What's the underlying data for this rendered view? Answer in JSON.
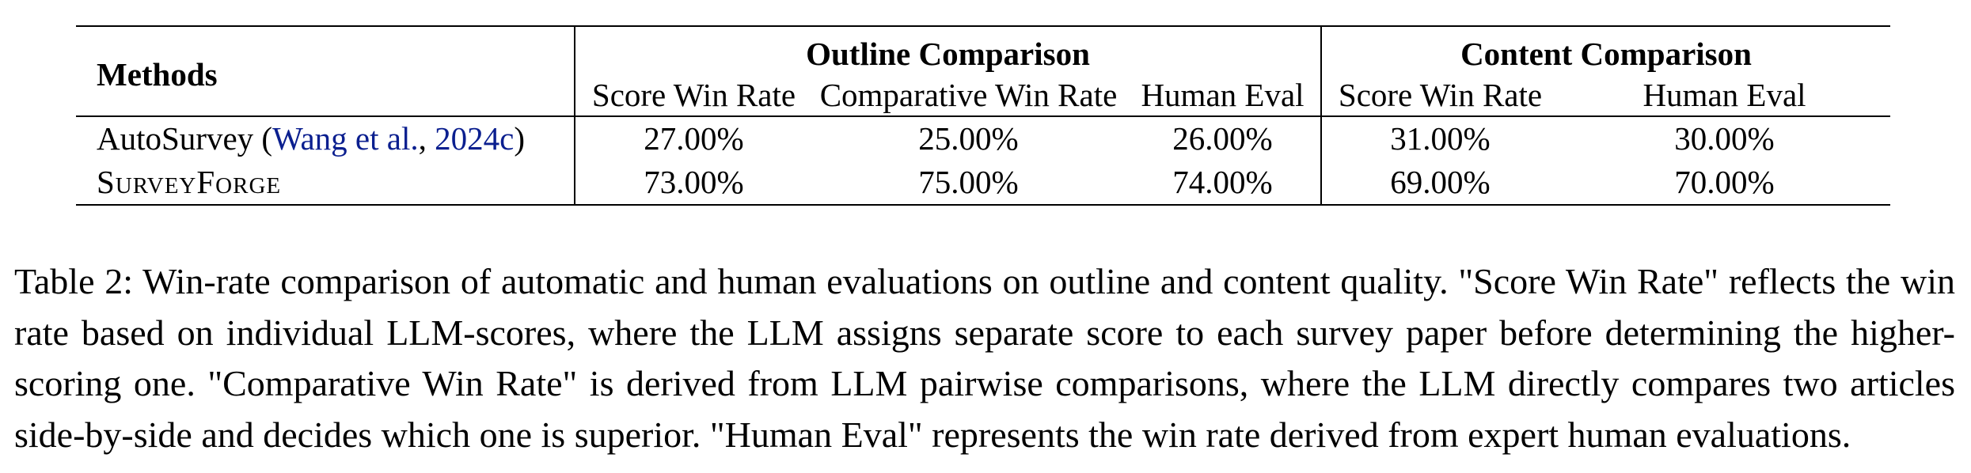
{
  "table": {
    "methods_header": "Methods",
    "groups": [
      {
        "label": "Outline Comparison",
        "columns": [
          "Score Win Rate",
          "Comparative Win Rate",
          "Human Eval"
        ]
      },
      {
        "label": "Content Comparison",
        "columns": [
          "Score Win Rate",
          "Human Eval"
        ]
      }
    ],
    "rows": [
      {
        "method_prefix": "AutoSurvey (",
        "cite_author": "Wang et al.",
        "cite_sep": ", ",
        "cite_year": "2024c",
        "method_suffix": ")",
        "values": [
          "27.00%",
          "25.00%",
          "26.00%",
          "31.00%",
          "30.00%"
        ]
      },
      {
        "method": "SurveyForge",
        "values": [
          "73.00%",
          "75.00%",
          "74.00%",
          "69.00%",
          "70.00%"
        ]
      }
    ]
  },
  "caption": "Table 2: Win-rate comparison of automatic and human evaluations on outline and content quality. \"Score Win Rate\" reflects the win rate based on individual LLM-scores, where the LLM assigns separate score to each survey paper before determining the higher-scoring one. \"Comparative Win Rate\" is derived from LLM pairwise comparisons, where the LLM directly compares two articles side-by-side and decides which one is superior. \"Human Eval\" represents the win rate derived from expert human evaluations."
}
